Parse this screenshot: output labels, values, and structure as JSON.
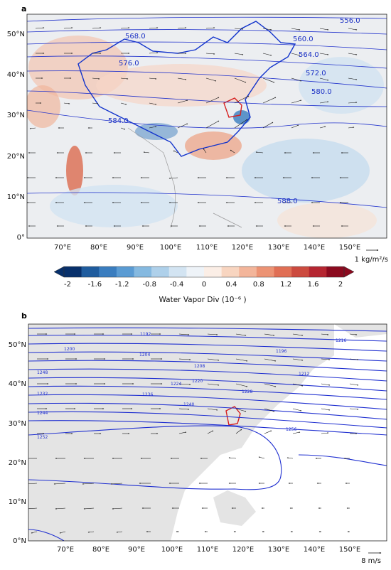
{
  "panel_a": {
    "label": "a",
    "lat_ticks": [
      "50°N",
      "40°N",
      "30°N",
      "20°N",
      "10°N",
      "0°"
    ],
    "lon_ticks": [
      "70°E",
      "80°E",
      "90°E",
      "100°E",
      "110°E",
      "120°E",
      "130°E",
      "140°E",
      "150°E"
    ],
    "contour_labels": [
      "556.0",
      "560.0",
      "564.0",
      "568.0",
      "572.0",
      "576.0",
      "580.0",
      "584.0",
      "588.0"
    ],
    "vector_ref": "1 kg/m²/s",
    "colorbar": {
      "title": "Water Vapor Div (10⁻⁶ )",
      "ticks": [
        "-2",
        "-1.6",
        "-1.2",
        "-0.8",
        "-0.4",
        "0",
        "0.4",
        "0.8",
        "1.2",
        "1.6",
        "2"
      ],
      "colors": [
        "#08306b",
        "#1f5c9e",
        "#3a7dbf",
        "#5a9bd3",
        "#85b9e0",
        "#aed0ea",
        "#d3e4f2",
        "#eef3f8",
        "#fbeee6",
        "#f8d5c0",
        "#f3b59a",
        "#ec9374",
        "#e06f55",
        "#cc4b3f",
        "#b52631",
        "#8b0a1f"
      ]
    }
  },
  "panel_b": {
    "label": "b",
    "lat_ticks": [
      "50°N",
      "40°N",
      "30°N",
      "20°N",
      "10°N",
      "0°N"
    ],
    "lon_ticks": [
      "70°E",
      "80°E",
      "90°E",
      "100°E",
      "110°E",
      "120°E",
      "130°E",
      "140°E",
      "150°E"
    ],
    "contour_labels": [
      "1192",
      "1196",
      "1200",
      "1204",
      "1208",
      "1212",
      "1216",
      "1220",
      "1224",
      "1228",
      "1232",
      "1236",
      "1240",
      "1244",
      "1248",
      "1252",
      "1256"
    ],
    "vector_ref": "8 m/s"
  }
}
